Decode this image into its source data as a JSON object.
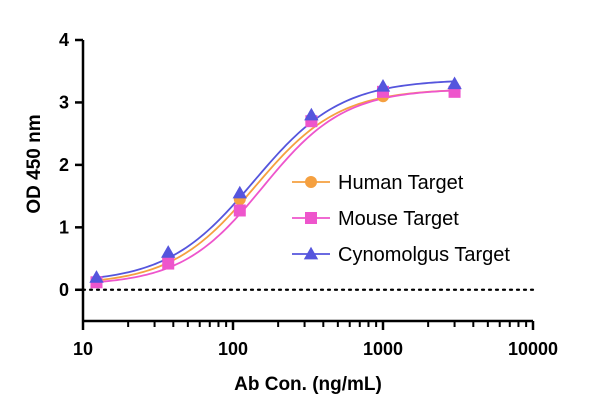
{
  "chart_data": {
    "type": "scatter",
    "title": "",
    "xlabel": "Ab Con. (ng/mL)",
    "ylabel": "OD 450 nm",
    "xscale": "log",
    "xlim": [
      10,
      10000
    ],
    "ylim": [
      -0.5,
      4
    ],
    "x_ticks": [
      10,
      100,
      1000,
      10000
    ],
    "x_tick_labels": [
      "10",
      "100",
      "1000",
      "10000"
    ],
    "y_ticks": [
      0,
      1,
      2,
      3,
      4
    ],
    "y_tick_labels": [
      "0",
      "1",
      "2",
      "3",
      "4"
    ],
    "baseline": 0,
    "grid": false,
    "legend_position": "right",
    "series": [
      {
        "name": "Human Target",
        "color": "#F5A040",
        "marker": "circle",
        "x": [
          12.3,
          37,
          111,
          333,
          1000,
          3000
        ],
        "y": [
          0.13,
          0.5,
          1.45,
          2.7,
          3.1,
          3.18
        ],
        "fit": {
          "bottom": 0.08,
          "top": 3.22,
          "ec50": 140,
          "hill": 1.55
        }
      },
      {
        "name": "Mouse Target",
        "color": "#EE55CC",
        "marker": "square",
        "x": [
          12.3,
          37,
          111,
          333,
          1000,
          3000
        ],
        "y": [
          0.12,
          0.42,
          1.27,
          2.7,
          3.17,
          3.17
        ],
        "fit": {
          "bottom": 0.07,
          "top": 3.22,
          "ec50": 158,
          "hill": 1.6
        }
      },
      {
        "name": "Cynomolgus Target",
        "color": "#5555DD",
        "marker": "triangle",
        "x": [
          12.3,
          37,
          111,
          333,
          1000,
          3000
        ],
        "y": [
          0.2,
          0.6,
          1.55,
          2.8,
          3.26,
          3.3
        ],
        "fit": {
          "bottom": 0.11,
          "top": 3.37,
          "ec50": 138,
          "hill": 1.5
        }
      }
    ]
  }
}
